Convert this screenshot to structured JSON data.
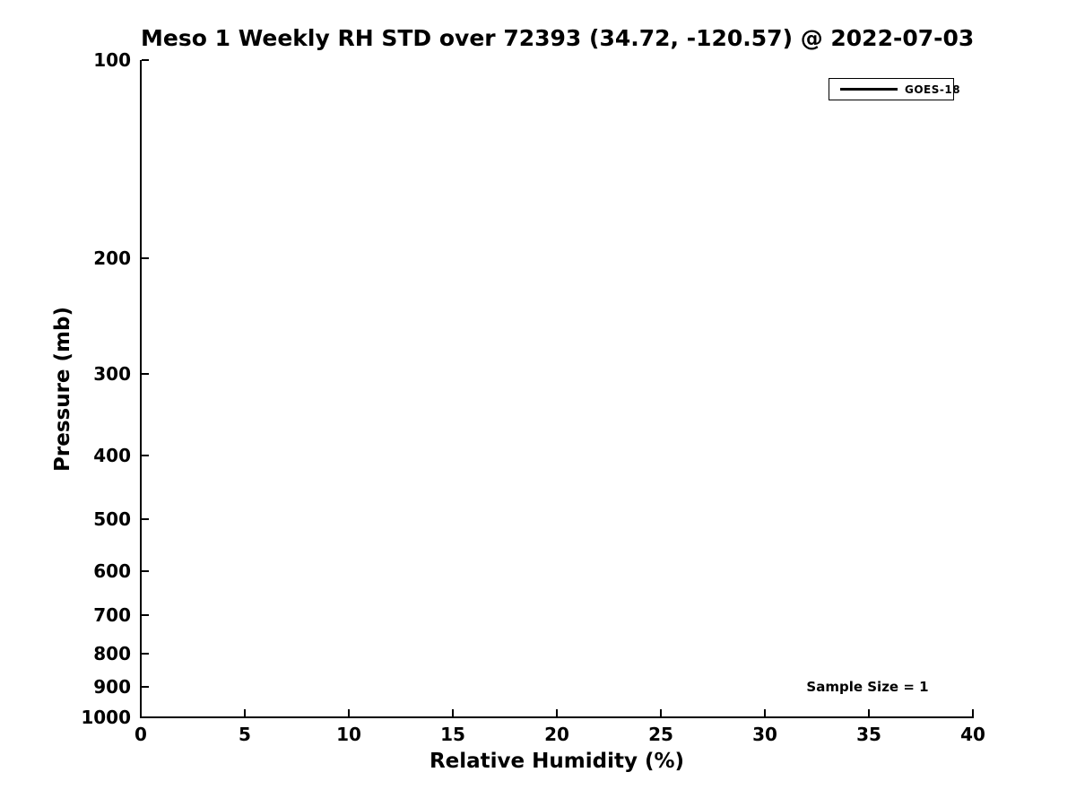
{
  "figure": {
    "background_color": "#ffffff",
    "text_color": "#000000"
  },
  "chart_data": {
    "type": "line",
    "title": "Meso 1 Weekly RH STD over 72393 (34.72, -120.57) @ 2022-07-03",
    "xlabel": "Relative Humidity (%)",
    "ylabel": "Pressure (mb)",
    "xlim": [
      0,
      40
    ],
    "ylim": [
      1000,
      100
    ],
    "xscale": "linear",
    "yscale": "log",
    "y_axis_inverted": true,
    "xticks": [
      0,
      5,
      10,
      15,
      20,
      25,
      30,
      35,
      40
    ],
    "yticks": [
      100,
      200,
      300,
      400,
      500,
      600,
      700,
      800,
      900,
      1000
    ],
    "grid": false,
    "tick_direction": "in",
    "legend": {
      "position": "upper-right",
      "entries": [
        {
          "label": "GOES-18",
          "line_color": "#000000"
        }
      ]
    },
    "annotations": [
      {
        "text": "Sample Size = 1"
      }
    ],
    "series": [
      {
        "name": "GOES-18",
        "color": "#000000",
        "x": [],
        "y": []
      }
    ]
  }
}
